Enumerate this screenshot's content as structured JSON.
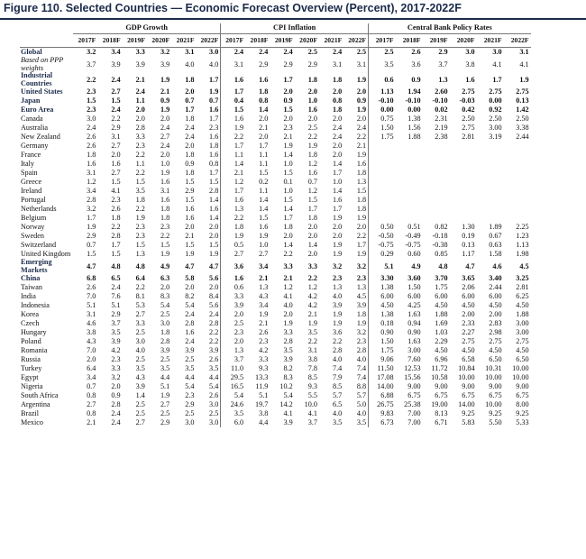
{
  "title": "Figure 110. Selected Countries — Economic Forecast Overview (Percent), 2017-2022F",
  "groups": [
    "GDP Growth",
    "CPI Inflation",
    "Central Bank Policy Rates"
  ],
  "years": [
    "2017F",
    "2018F",
    "2019F",
    "2020F",
    "2021F",
    "2022F"
  ],
  "rows": [
    {
      "label": "Global",
      "style": "bold",
      "gdp": [
        "3.2",
        "3.4",
        "3.3",
        "3.2",
        "3.1",
        "3.0"
      ],
      "cpi": [
        "2.4",
        "2.4",
        "2.4",
        "2.5",
        "2.4",
        "2.5"
      ],
      "cbr": [
        "2.5",
        "2.6",
        "2.9",
        "3.0",
        "3.0",
        "3.1"
      ]
    },
    {
      "label": "Based on PPP weights",
      "style": "italic",
      "gdp": [
        "3.7",
        "3.9",
        "3.9",
        "3.9",
        "4.0",
        "4.0"
      ],
      "cpi": [
        "3.1",
        "2.9",
        "2.9",
        "2.9",
        "3.1",
        "3.1"
      ],
      "cbr": [
        "3.5",
        "3.6",
        "3.7",
        "3.8",
        "4.1",
        "4.1"
      ]
    },
    {
      "label": "Industrial Countries",
      "style": "bold",
      "gdp": [
        "2.2",
        "2.4",
        "2.1",
        "1.9",
        "1.8",
        "1.7"
      ],
      "cpi": [
        "1.6",
        "1.6",
        "1.7",
        "1.8",
        "1.8",
        "1.9"
      ],
      "cbr": [
        "0.6",
        "0.9",
        "1.3",
        "1.6",
        "1.7",
        "1.9"
      ]
    },
    {
      "label": "United States",
      "style": "bold",
      "gdp": [
        "2.3",
        "2.7",
        "2.4",
        "2.1",
        "2.0",
        "1.9"
      ],
      "cpi": [
        "1.7",
        "1.8",
        "2.0",
        "2.0",
        "2.0",
        "2.0"
      ],
      "cbr": [
        "1.13",
        "1.94",
        "2.60",
        "2.75",
        "2.75",
        "2.75"
      ]
    },
    {
      "label": "Japan",
      "style": "bold",
      "gdp": [
        "1.5",
        "1.5",
        "1.1",
        "0.9",
        "0.7",
        "0.7"
      ],
      "cpi": [
        "0.4",
        "0.8",
        "0.9",
        "1.0",
        "0.8",
        "0.9"
      ],
      "cbr": [
        "-0.10",
        "-0.10",
        "-0.10",
        "-0.03",
        "0.00",
        "0.13"
      ]
    },
    {
      "label": "Euro Area",
      "style": "bold",
      "gdp": [
        "2.3",
        "2.4",
        "2.0",
        "1.9",
        "1.7",
        "1.6"
      ],
      "cpi": [
        "1.5",
        "1.4",
        "1.5",
        "1.6",
        "1.8",
        "1.9"
      ],
      "cbr": [
        "0.00",
        "0.00",
        "0.02",
        "0.42",
        "0.92",
        "1.42"
      ]
    },
    {
      "label": "Canada",
      "style": "",
      "gdp": [
        "3.0",
        "2.2",
        "2.0",
        "2.0",
        "1.8",
        "1.7"
      ],
      "cpi": [
        "1.6",
        "2.0",
        "2.0",
        "2.0",
        "2.0",
        "2.0"
      ],
      "cbr": [
        "0.75",
        "1.38",
        "2.31",
        "2.50",
        "2.50",
        "2.50"
      ]
    },
    {
      "label": "Australia",
      "style": "",
      "gdp": [
        "2.4",
        "2.9",
        "2.8",
        "2.4",
        "2.4",
        "2.3"
      ],
      "cpi": [
        "1.9",
        "2.1",
        "2.3",
        "2.5",
        "2.4",
        "2.4"
      ],
      "cbr": [
        "1.50",
        "1.56",
        "2.19",
        "2.75",
        "3.00",
        "3.38"
      ]
    },
    {
      "label": "New Zealand",
      "style": "",
      "gdp": [
        "2.6",
        "3.1",
        "3.3",
        "2.7",
        "2.4",
        "1.6"
      ],
      "cpi": [
        "2.2",
        "2.0",
        "2.1",
        "2.2",
        "2.4",
        "2.2"
      ],
      "cbr": [
        "1.75",
        "1.88",
        "2.38",
        "2.81",
        "3.19",
        "2.44"
      ]
    },
    {
      "label": "Germany",
      "style": "",
      "gdp": [
        "2.6",
        "2.7",
        "2.3",
        "2.4",
        "2.0",
        "1.8"
      ],
      "cpi": [
        "1.7",
        "1.7",
        "1.9",
        "1.9",
        "2.0",
        "2.1"
      ],
      "cbr": [
        "",
        "",
        "",
        "",
        "",
        ""
      ]
    },
    {
      "label": "France",
      "style": "",
      "gdp": [
        "1.8",
        "2.0",
        "2.2",
        "2.0",
        "1.8",
        "1.6"
      ],
      "cpi": [
        "1.1",
        "1.1",
        "1.4",
        "1.8",
        "2.0",
        "1.9"
      ],
      "cbr": [
        "",
        "",
        "",
        "",
        "",
        ""
      ]
    },
    {
      "label": "Italy",
      "style": "",
      "gdp": [
        "1.6",
        "1.6",
        "1.1",
        "1.0",
        "0.9",
        "0.8"
      ],
      "cpi": [
        "1.4",
        "1.1",
        "1.0",
        "1.2",
        "1.4",
        "1.6"
      ],
      "cbr": [
        "",
        "",
        "",
        "",
        "",
        ""
      ]
    },
    {
      "label": "Spain",
      "style": "",
      "gdp": [
        "3.1",
        "2.7",
        "2.2",
        "1.9",
        "1.8",
        "1.7"
      ],
      "cpi": [
        "2.1",
        "1.5",
        "1.5",
        "1.6",
        "1.7",
        "1.8"
      ],
      "cbr": [
        "",
        "",
        "",
        "",
        "",
        ""
      ]
    },
    {
      "label": "Greece",
      "style": "",
      "gdp": [
        "1.2",
        "1.5",
        "1.5",
        "1.6",
        "1.5",
        "1.5"
      ],
      "cpi": [
        "1.2",
        "0.2",
        "0.1",
        "0.7",
        "1.0",
        "1.3"
      ],
      "cbr": [
        "",
        "",
        "",
        "",
        "",
        ""
      ]
    },
    {
      "label": "Ireland",
      "style": "",
      "gdp": [
        "3.4",
        "4.1",
        "3.5",
        "3.1",
        "2.9",
        "2.8"
      ],
      "cpi": [
        "1.7",
        "1.1",
        "1.0",
        "1.2",
        "1.4",
        "1.5"
      ],
      "cbr": [
        "",
        "",
        "",
        "",
        "",
        ""
      ]
    },
    {
      "label": "Portugal",
      "style": "",
      "gdp": [
        "2.8",
        "2.3",
        "1.8",
        "1.6",
        "1.5",
        "1.4"
      ],
      "cpi": [
        "1.6",
        "1.4",
        "1.5",
        "1.5",
        "1.6",
        "1.8"
      ],
      "cbr": [
        "",
        "",
        "",
        "",
        "",
        ""
      ]
    },
    {
      "label": "Netherlands",
      "style": "",
      "gdp": [
        "3.2",
        "2.6",
        "2.2",
        "1.8",
        "1.6",
        "1.6"
      ],
      "cpi": [
        "1.3",
        "1.4",
        "1.4",
        "1.7",
        "1.7",
        "1.8"
      ],
      "cbr": [
        "",
        "",
        "",
        "",
        "",
        ""
      ]
    },
    {
      "label": "Belgium",
      "style": "",
      "gdp": [
        "1.7",
        "1.8",
        "1.9",
        "1.8",
        "1.6",
        "1.4"
      ],
      "cpi": [
        "2.2",
        "1.5",
        "1.7",
        "1.8",
        "1.9",
        "1.9"
      ],
      "cbr": [
        "",
        "",
        "",
        "",
        "",
        ""
      ]
    },
    {
      "label": "Norway",
      "style": "",
      "gdp": [
        "1.9",
        "2.2",
        "2.3",
        "2.3",
        "2.0",
        "2.0"
      ],
      "cpi": [
        "1.8",
        "1.6",
        "1.8",
        "2.0",
        "2.0",
        "2.0"
      ],
      "cbr": [
        "0.50",
        "0.51",
        "0.82",
        "1.30",
        "1.89",
        "2.25"
      ]
    },
    {
      "label": "Sweden",
      "style": "",
      "gdp": [
        "2.9",
        "2.8",
        "2.3",
        "2.2",
        "2.1",
        "2.0"
      ],
      "cpi": [
        "1.9",
        "1.9",
        "2.0",
        "2.0",
        "2.0",
        "2.2"
      ],
      "cbr": [
        "-0.50",
        "-0.49",
        "-0.18",
        "0.19",
        "0.67",
        "1.23"
      ]
    },
    {
      "label": "Switzerland",
      "style": "",
      "gdp": [
        "0.7",
        "1.7",
        "1.5",
        "1.5",
        "1.5",
        "1.5"
      ],
      "cpi": [
        "0.5",
        "1.0",
        "1.4",
        "1.4",
        "1.9",
        "1.7"
      ],
      "cbr": [
        "-0.75",
        "-0.75",
        "-0.38",
        "0.13",
        "0.63",
        "1.13"
      ]
    },
    {
      "label": "United Kingdom",
      "style": "",
      "gdp": [
        "1.5",
        "1.5",
        "1.3",
        "1.9",
        "1.9",
        "1.9"
      ],
      "cpi": [
        "2.7",
        "2.7",
        "2.2",
        "2.0",
        "1.9",
        "1.9"
      ],
      "cbr": [
        "0.29",
        "0.60",
        "0.85",
        "1.17",
        "1.58",
        "1.98"
      ]
    },
    {
      "label": "Emerging Markets",
      "style": "bold",
      "gdp": [
        "4.7",
        "4.8",
        "4.8",
        "4.9",
        "4.7",
        "4.7"
      ],
      "cpi": [
        "3.6",
        "3.4",
        "3.3",
        "3.3",
        "3.2",
        "3.2"
      ],
      "cbr": [
        "5.1",
        "4.9",
        "4.8",
        "4.7",
        "4.6",
        "4.5"
      ]
    },
    {
      "label": "China",
      "style": "bold",
      "gdp": [
        "6.8",
        "6.5",
        "6.4",
        "6.3",
        "5.8",
        "5.6"
      ],
      "cpi": [
        "1.6",
        "2.1",
        "2.1",
        "2.2",
        "2.3",
        "2.3"
      ],
      "cbr": [
        "3.30",
        "3.60",
        "3.70",
        "3.65",
        "3.40",
        "3.25"
      ]
    },
    {
      "label": "Taiwan",
      "style": "",
      "gdp": [
        "2.6",
        "2.4",
        "2.2",
        "2.0",
        "2.0",
        "2.0"
      ],
      "cpi": [
        "0.6",
        "1.3",
        "1.2",
        "1.2",
        "1.3",
        "1.3"
      ],
      "cbr": [
        "1.38",
        "1.50",
        "1.75",
        "2.06",
        "2.44",
        "2.81"
      ]
    },
    {
      "label": "India",
      "style": "",
      "gdp": [
        "7.0",
        "7.6",
        "8.1",
        "8.3",
        "8.2",
        "8.4"
      ],
      "cpi": [
        "3.3",
        "4.3",
        "4.1",
        "4.2",
        "4.0",
        "4.5"
      ],
      "cbr": [
        "6.00",
        "6.00",
        "6.00",
        "6.00",
        "6.00",
        "6.25"
      ]
    },
    {
      "label": "Indonesia",
      "style": "",
      "gdp": [
        "5.1",
        "5.1",
        "5.3",
        "5.4",
        "5.4",
        "5.6"
      ],
      "cpi": [
        "3.9",
        "3.4",
        "4.0",
        "4.2",
        "3.9",
        "3.9"
      ],
      "cbr": [
        "4.50",
        "4.25",
        "4.50",
        "4.50",
        "4.50",
        "4.50"
      ]
    },
    {
      "label": "Korea",
      "style": "",
      "gdp": [
        "3.1",
        "2.9",
        "2.7",
        "2.5",
        "2.4",
        "2.4"
      ],
      "cpi": [
        "2.0",
        "1.9",
        "2.0",
        "2.1",
        "1.9",
        "1.8"
      ],
      "cbr": [
        "1.38",
        "1.63",
        "1.88",
        "2.00",
        "2.00",
        "1.88"
      ]
    },
    {
      "label": "Czech",
      "style": "",
      "gdp": [
        "4.6",
        "3.7",
        "3.3",
        "3.0",
        "2.8",
        "2.8"
      ],
      "cpi": [
        "2.5",
        "2.1",
        "1.9",
        "1.9",
        "1.9",
        "1.9"
      ],
      "cbr": [
        "0.18",
        "0.94",
        "1.69",
        "2.33",
        "2.83",
        "3.00"
      ]
    },
    {
      "label": "Hungary",
      "style": "",
      "gdp": [
        "3.8",
        "3.5",
        "2.5",
        "1.8",
        "1.6",
        "2.2"
      ],
      "cpi": [
        "2.3",
        "2.6",
        "3.3",
        "3.5",
        "3.6",
        "3.2"
      ],
      "cbr": [
        "0.90",
        "0.90",
        "1.03",
        "2.27",
        "2.98",
        "3.00"
      ]
    },
    {
      "label": "Poland",
      "style": "",
      "gdp": [
        "4.3",
        "3.9",
        "3.0",
        "2.8",
        "2.4",
        "2.2"
      ],
      "cpi": [
        "2.0",
        "2.3",
        "2.8",
        "2.2",
        "2.2",
        "2.3"
      ],
      "cbr": [
        "1.50",
        "1.63",
        "2.29",
        "2.75",
        "2.75",
        "2.75"
      ]
    },
    {
      "label": "Romania",
      "style": "",
      "gdp": [
        "7.0",
        "4.2",
        "4.0",
        "3.9",
        "3.9",
        "3.9"
      ],
      "cpi": [
        "1.3",
        "4.2",
        "3.5",
        "3.1",
        "2.8",
        "2.8"
      ],
      "cbr": [
        "1.75",
        "3.00",
        "4.50",
        "4.50",
        "4.50",
        "4.50"
      ]
    },
    {
      "label": "Russia",
      "style": "",
      "gdp": [
        "2.0",
        "2.3",
        "2.5",
        "2.5",
        "2.5",
        "2.6"
      ],
      "cpi": [
        "3.7",
        "3.3",
        "3.9",
        "3.8",
        "4.0",
        "4.0"
      ],
      "cbr": [
        "9.06",
        "7.60",
        "6.96",
        "6.58",
        "6.50",
        "6.50"
      ]
    },
    {
      "label": "Turkey",
      "style": "",
      "gdp": [
        "6.4",
        "3.3",
        "3.5",
        "3.5",
        "3.5",
        "3.5"
      ],
      "cpi": [
        "11.0",
        "9.3",
        "8.2",
        "7.8",
        "7.4",
        "7.4"
      ],
      "cbr": [
        "11.50",
        "12.53",
        "11.72",
        "10.84",
        "10.31",
        "10.00"
      ]
    },
    {
      "label": "Egypt",
      "style": "",
      "gdp": [
        "3.4",
        "3.2",
        "4.3",
        "4.4",
        "4.4",
        "4.4"
      ],
      "cpi": [
        "29.5",
        "13.3",
        "8.3",
        "8.5",
        "7.9",
        "7.4"
      ],
      "cbr": [
        "17.08",
        "15.56",
        "10.58",
        "10.00",
        "10.00",
        "10.00"
      ]
    },
    {
      "label": "Nigeria",
      "style": "",
      "gdp": [
        "0.7",
        "2.0",
        "3.9",
        "5.1",
        "5.4",
        "5.4"
      ],
      "cpi": [
        "16.5",
        "11.9",
        "10.2",
        "9.3",
        "8.5",
        "8.8"
      ],
      "cbr": [
        "14.00",
        "9.00",
        "9.00",
        "9.00",
        "9.00",
        "9.00"
      ]
    },
    {
      "label": "South Africa",
      "style": "",
      "gdp": [
        "0.8",
        "0.9",
        "1.4",
        "1.9",
        "2.3",
        "2.6"
      ],
      "cpi": [
        "5.4",
        "5.1",
        "5.4",
        "5.5",
        "5.7",
        "5.7"
      ],
      "cbr": [
        "6.88",
        "6.75",
        "6.75",
        "6.75",
        "6.75",
        "6.75"
      ]
    },
    {
      "label": "Argentina",
      "style": "",
      "gdp": [
        "2.7",
        "2.8",
        "2.5",
        "2.7",
        "2.9",
        "3.0"
      ],
      "cpi": [
        "24.6",
        "19.7",
        "14.2",
        "10.0",
        "6.5",
        "5.0"
      ],
      "cbr": [
        "26.75",
        "25.38",
        "19.00",
        "14.00",
        "10.00",
        "8.00"
      ]
    },
    {
      "label": "Brazil",
      "style": "",
      "gdp": [
        "0.8",
        "2.4",
        "2.5",
        "2.5",
        "2.5",
        "2.5"
      ],
      "cpi": [
        "3.5",
        "3.8",
        "4.1",
        "4.1",
        "4.0",
        "4.0"
      ],
      "cbr": [
        "9.83",
        "7.00",
        "8.13",
        "9.25",
        "9.25",
        "9.25"
      ]
    },
    {
      "label": "Mexico",
      "style": "",
      "gdp": [
        "2.1",
        "2.4",
        "2.7",
        "2.9",
        "3.0",
        "3.0"
      ],
      "cpi": [
        "6.0",
        "4.4",
        "3.9",
        "3.7",
        "3.5",
        "3.5"
      ],
      "cbr": [
        "6.73",
        "7.00",
        "6.71",
        "5.83",
        "5.50",
        "5.33"
      ]
    }
  ]
}
